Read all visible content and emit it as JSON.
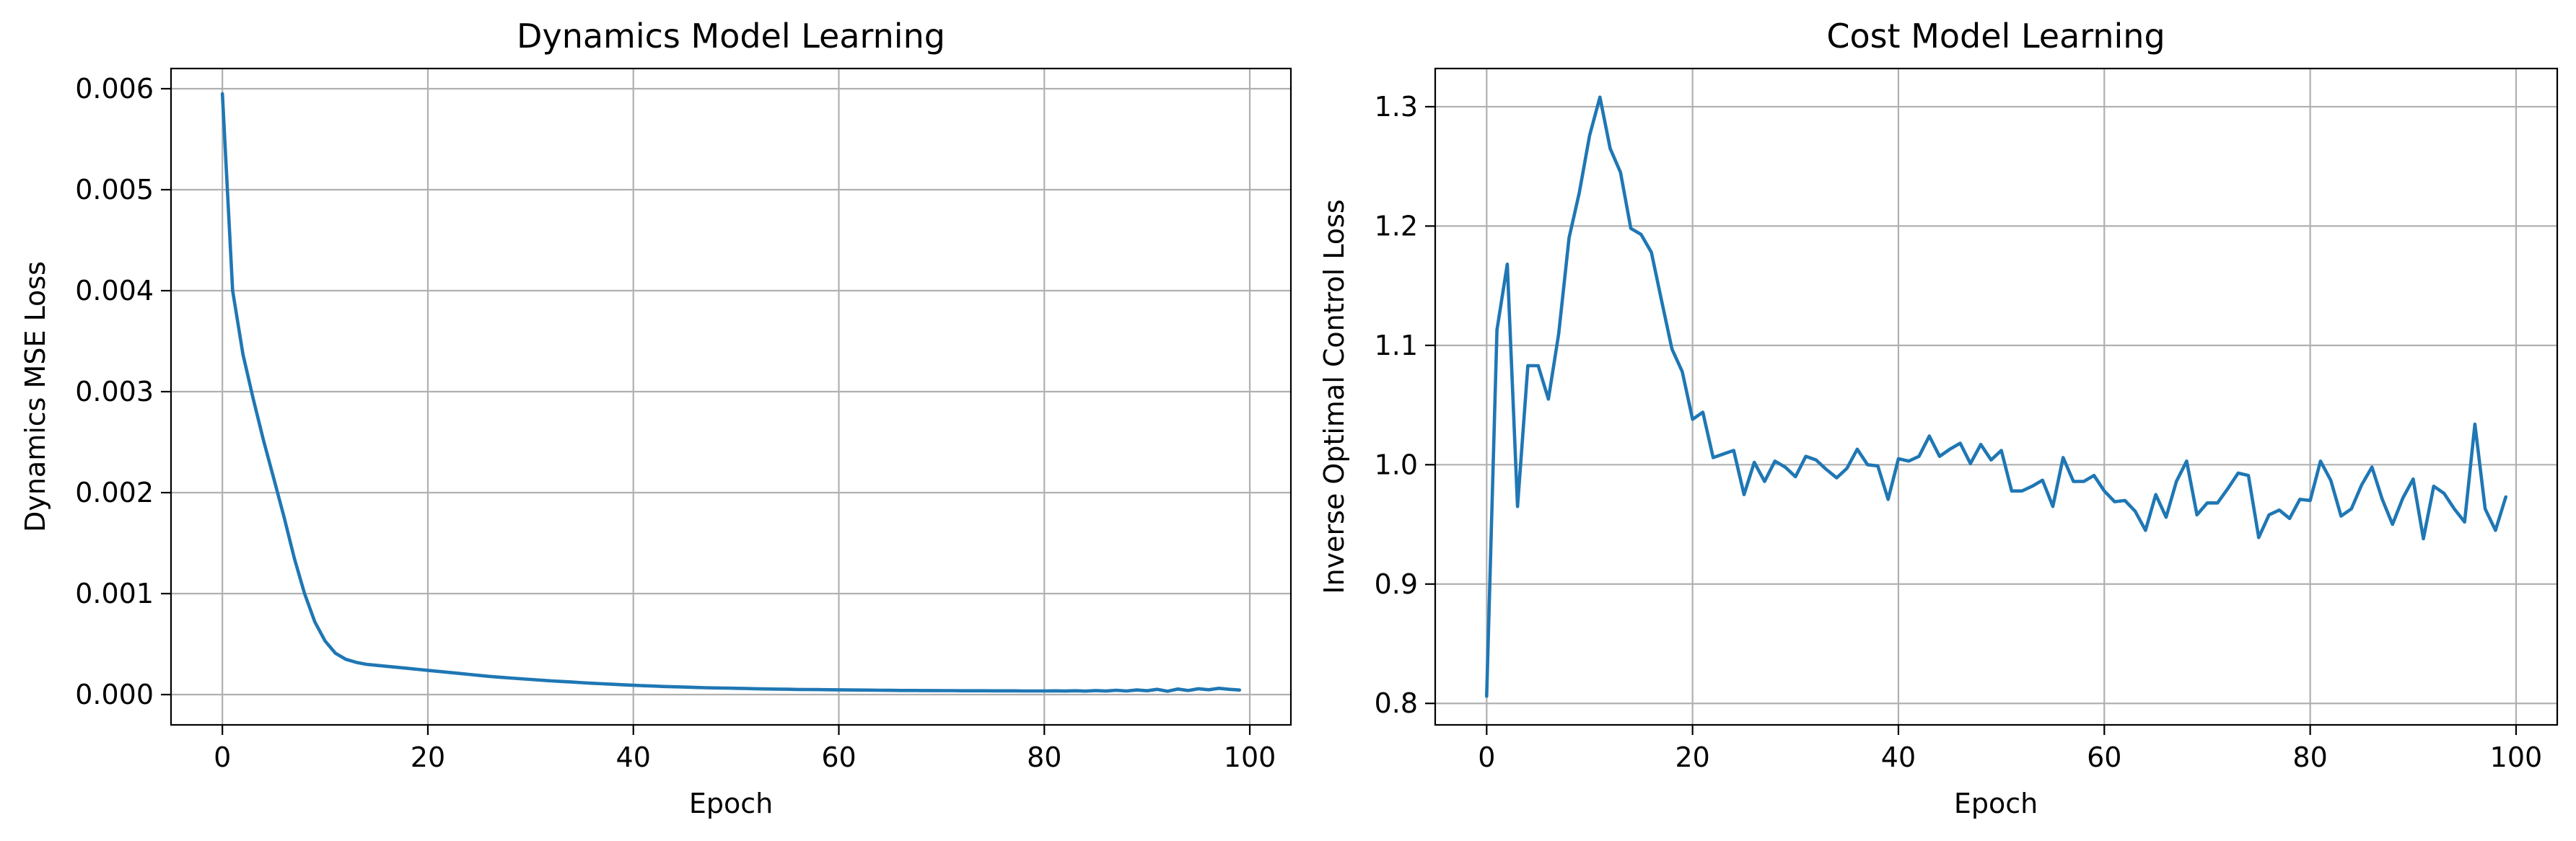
{
  "colors": {
    "series": "#1f77b4",
    "grid": "#b0b0b0"
  },
  "chart_data": [
    {
      "type": "line",
      "title": "Dynamics Model Learning",
      "xlabel": "Epoch",
      "ylabel": "Dynamics MSE Loss",
      "xlim": [
        -5,
        104
      ],
      "ylim": [
        -0.0003,
        0.0062
      ],
      "xticks": [
        0,
        20,
        40,
        60,
        80,
        100
      ],
      "xtick_labels": [
        "0",
        "20",
        "40",
        "60",
        "80",
        "100"
      ],
      "yticks": [
        0,
        0.001,
        0.002,
        0.003,
        0.004,
        0.005,
        0.006
      ],
      "ytick_labels": [
        "0.000",
        "0.001",
        "0.002",
        "0.003",
        "0.004",
        "0.005",
        "0.006"
      ],
      "grid": true,
      "series": [
        {
          "x": [
            0,
            1,
            2,
            3,
            4,
            5,
            6,
            7,
            8,
            9,
            10,
            11,
            12,
            13,
            14,
            15,
            16,
            17,
            18,
            19,
            20,
            21,
            22,
            23,
            24,
            25,
            26,
            27,
            28,
            29,
            30,
            31,
            32,
            33,
            34,
            35,
            36,
            37,
            38,
            39,
            40,
            41,
            42,
            43,
            44,
            45,
            46,
            47,
            48,
            49,
            50,
            51,
            52,
            53,
            54,
            55,
            56,
            57,
            58,
            59,
            60,
            61,
            62,
            63,
            64,
            65,
            66,
            67,
            68,
            69,
            70,
            71,
            72,
            73,
            74,
            75,
            76,
            77,
            78,
            79,
            80,
            81,
            82,
            83,
            84,
            85,
            86,
            87,
            88,
            89,
            90,
            91,
            92,
            93,
            94,
            95,
            96,
            97,
            98,
            99
          ],
          "values": [
            0.00595,
            0.004,
            0.00337,
            0.00293,
            0.00252,
            0.00214,
            0.00176,
            0.00135,
            0.001,
            0.00072,
            0.00053,
            0.00041,
            0.00035,
            0.00032,
            0.0003,
            0.00029,
            0.00028,
            0.00027,
            0.00026,
            0.00025,
            0.00024,
            0.00023,
            0.00022,
            0.00021,
            0.0002,
            0.00019,
            0.00018,
            0.000172,
            0.000164,
            0.000157,
            0.00015,
            0.000143,
            0.000136,
            0.00013,
            0.000124,
            0.000118,
            0.000112,
            0.000107,
            0.000102,
            9.7e-05,
            9.2e-05,
            8.8e-05,
            8.4e-05,
            8e-05,
            7.7e-05,
            7.4e-05,
            7.1e-05,
            6.8e-05,
            6.6e-05,
            6.4e-05,
            6.2e-05,
            6e-05,
            5.8e-05,
            5.6e-05,
            5.4e-05,
            5.3e-05,
            5.1e-05,
            5e-05,
            4.9e-05,
            4.8e-05,
            4.7e-05,
            4.6e-05,
            4.5e-05,
            4.4e-05,
            4.3e-05,
            4.2e-05,
            4.1e-05,
            4.1e-05,
            4e-05,
            4e-05,
            3.9e-05,
            3.9e-05,
            3.8e-05,
            3.8e-05,
            3.8e-05,
            3.7e-05,
            3.7e-05,
            3.7e-05,
            3.6e-05,
            3.6e-05,
            3.6e-05,
            3.7e-05,
            3.5e-05,
            3.8e-05,
            3.4e-05,
            4e-05,
            3.5e-05,
            4.3e-05,
            3.6e-05,
            4.6e-05,
            3.8e-05,
            5.2e-05,
            3.3e-05,
            5.5e-05,
            4e-05,
            5.8e-05,
            4.8e-05,
            6.2e-05,
            5.2e-05,
            4.5e-05
          ]
        }
      ]
    },
    {
      "type": "line",
      "title": "Cost Model Learning",
      "xlabel": "Epoch",
      "ylabel": "Inverse Optimal Control Loss",
      "xlim": [
        -5,
        104
      ],
      "ylim": [
        0.782,
        1.332
      ],
      "xticks": [
        0,
        20,
        40,
        60,
        80,
        100
      ],
      "xtick_labels": [
        "0",
        "20",
        "40",
        "60",
        "80",
        "100"
      ],
      "yticks": [
        0.8,
        0.9,
        1.0,
        1.1,
        1.2,
        1.3
      ],
      "ytick_labels": [
        "0.8",
        "0.9",
        "1.0",
        "1.1",
        "1.2",
        "1.3"
      ],
      "grid": true,
      "series": [
        {
          "x": [
            0,
            1,
            2,
            3,
            4,
            5,
            6,
            7,
            8,
            9,
            10,
            11,
            12,
            13,
            14,
            15,
            16,
            17,
            18,
            19,
            20,
            21,
            22,
            23,
            24,
            25,
            26,
            27,
            28,
            29,
            30,
            31,
            32,
            33,
            34,
            35,
            36,
            37,
            38,
            39,
            40,
            41,
            42,
            43,
            44,
            45,
            46,
            47,
            48,
            49,
            50,
            51,
            52,
            53,
            54,
            55,
            56,
            57,
            58,
            59,
            60,
            61,
            62,
            63,
            64,
            65,
            66,
            67,
            68,
            69,
            70,
            71,
            72,
            73,
            74,
            75,
            76,
            77,
            78,
            79,
            80,
            81,
            82,
            83,
            84,
            85,
            86,
            87,
            88,
            89,
            90,
            91,
            92,
            93,
            94,
            95,
            96,
            97,
            98,
            99
          ],
          "values": [
            0.806,
            1.113,
            1.168,
            0.965,
            1.083,
            1.083,
            1.055,
            1.11,
            1.19,
            1.228,
            1.276,
            1.308,
            1.265,
            1.245,
            1.198,
            1.193,
            1.178,
            1.137,
            1.097,
            1.078,
            1.038,
            1.044,
            1.006,
            1.009,
            1.012,
            0.975,
            1.002,
            0.986,
            1.003,
            0.998,
            0.99,
            1.007,
            1.004,
            0.996,
            0.989,
            0.997,
            1.013,
            1.0,
            0.999,
            0.971,
            1.005,
            1.003,
            1.007,
            1.024,
            1.007,
            1.013,
            1.018,
            1.001,
            1.017,
            1.004,
            1.012,
            0.978,
            0.978,
            0.982,
            0.987,
            0.965,
            1.006,
            0.986,
            0.986,
            0.991,
            0.978,
            0.969,
            0.97,
            0.961,
            0.945,
            0.975,
            0.956,
            0.986,
            1.003,
            0.958,
            0.968,
            0.968,
            0.98,
            0.993,
            0.991,
            0.939,
            0.958,
            0.962,
            0.955,
            0.971,
            0.97,
            1.003,
            0.987,
            0.957,
            0.963,
            0.983,
            0.998,
            0.971,
            0.95,
            0.972,
            0.988,
            0.938,
            0.982,
            0.976,
            0.963,
            0.952,
            1.034,
            0.963,
            0.945,
            0.973
          ]
        }
      ]
    }
  ]
}
